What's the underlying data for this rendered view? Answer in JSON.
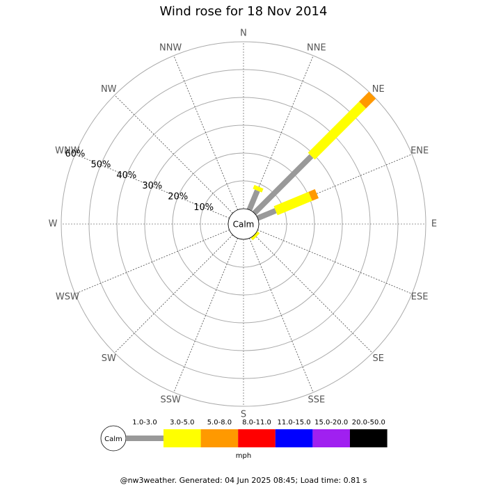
{
  "chart_data": {
    "type": "windrose",
    "title": "Wind rose for 18 Nov 2014",
    "categories": [
      "N",
      "NNE",
      "NE",
      "ENE",
      "E",
      "ESE",
      "SE",
      "SSE",
      "S",
      "SSW",
      "SW",
      "WSW",
      "W",
      "WNW",
      "NW",
      "NNW"
    ],
    "series": [
      {
        "name": "1.0-3.0",
        "color": "#999999",
        "values": [
          0,
          7.5,
          29,
          7,
          0,
          0,
          0,
          0,
          0,
          0,
          0,
          0,
          0,
          0,
          0,
          0
        ]
      },
      {
        "name": "3.0-5.0",
        "color": "#ffff00",
        "values": [
          0,
          1.5,
          26,
          13.5,
          0,
          0,
          1,
          0,
          0,
          0,
          0,
          0,
          0,
          0,
          0,
          0
        ]
      },
      {
        "name": "5.0-8.0",
        "color": "#ff9900",
        "values": [
          0,
          0,
          5,
          2.5,
          0,
          0,
          0,
          0,
          0,
          0,
          0,
          0,
          0,
          0,
          0,
          0
        ]
      },
      {
        "name": "8.0-11.0",
        "color": "#ff0000",
        "values": [
          0,
          0,
          0,
          0,
          0,
          0,
          0,
          0,
          0,
          0,
          0,
          0,
          0,
          0,
          0,
          0
        ]
      },
      {
        "name": "11.0-15.0",
        "color": "#0000ff",
        "values": [
          0,
          0,
          0,
          0,
          0,
          0,
          0,
          0,
          0,
          0,
          0,
          0,
          0,
          0,
          0,
          0
        ]
      },
      {
        "name": "15.0-20.0",
        "color": "#a020f0",
        "values": [
          0,
          0,
          0,
          0,
          0,
          0,
          0,
          0,
          0,
          0,
          0,
          0,
          0,
          0,
          0,
          0
        ]
      },
      {
        "name": "20.0-50.0",
        "color": "#000000",
        "values": [
          0,
          0,
          0,
          0,
          0,
          0,
          0,
          0,
          0,
          0,
          0,
          0,
          0,
          0,
          0,
          0
        ]
      }
    ],
    "rlim": [
      0,
      60
    ],
    "rticks": [
      {
        "value": 10,
        "label": "10%"
      },
      {
        "value": 20,
        "label": "20%"
      },
      {
        "value": 30,
        "label": "30%"
      },
      {
        "value": 40,
        "label": "40%"
      },
      {
        "value": 50,
        "label": "50%"
      },
      {
        "value": 60,
        "label": "60%"
      }
    ],
    "calm_label": "Calm",
    "legend_unit": "mph",
    "footer": "@nw3weather. Generated: 04 Jun 2025 08:45; Load time: 0.81 s"
  }
}
